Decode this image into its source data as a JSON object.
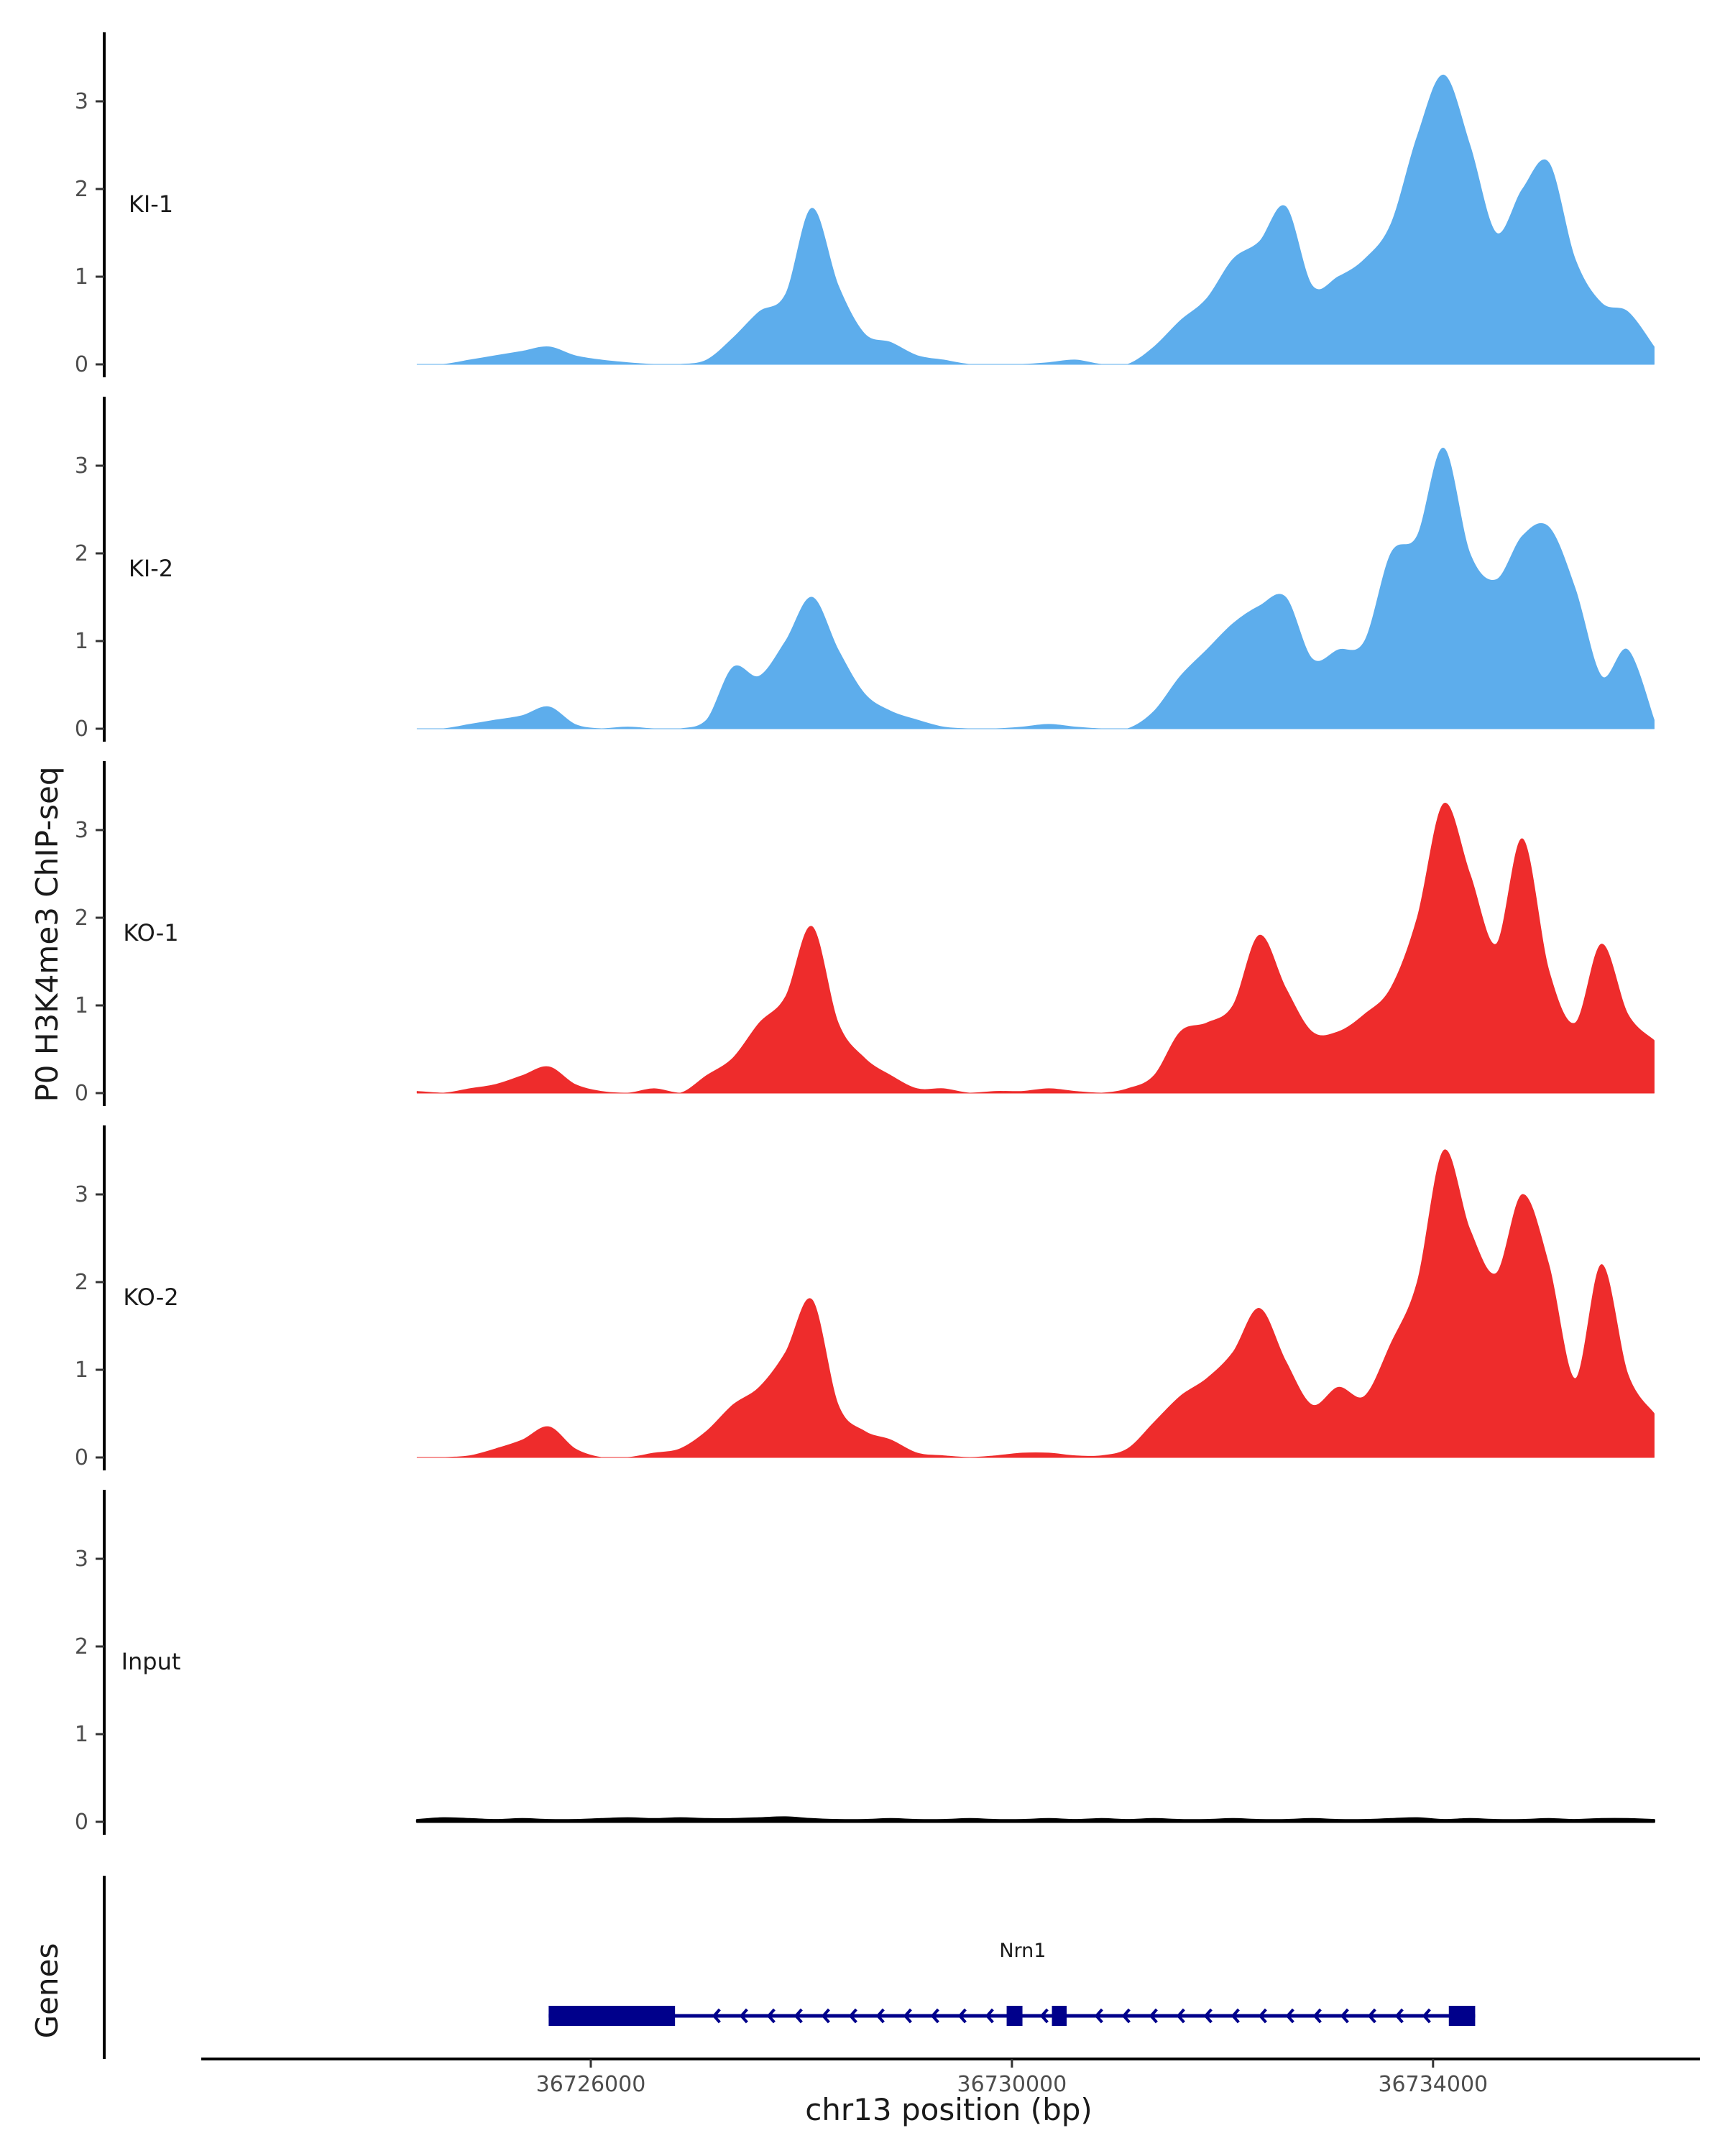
{
  "chart_data": {
    "type": "area",
    "title": "",
    "ylabel": "P0 H3K4me3 ChIP-seq",
    "xlabel": "chr13 position (bp)",
    "genes_label": "Genes",
    "xlim": [
      36722300,
      36736500
    ],
    "ylim": [
      0,
      3.75
    ],
    "y_ticks": [
      0,
      1,
      2,
      3
    ],
    "x_ticks": [
      36726000,
      36730000,
      36734000
    ],
    "x_tick_labels": [
      "36726000",
      "36730000",
      "36734000"
    ],
    "colors": {
      "KI": "#5DADEC",
      "KO": "#EE2C2C",
      "Input": "#000000",
      "gene": "#00008B"
    },
    "x": [
      36724350,
      36724600,
      36724850,
      36725100,
      36725350,
      36725600,
      36725850,
      36726100,
      36726350,
      36726600,
      36726850,
      36727100,
      36727350,
      36727600,
      36727850,
      36728100,
      36728350,
      36728600,
      36728850,
      36729100,
      36729350,
      36729600,
      36729850,
      36730100,
      36730350,
      36730600,
      36730850,
      36731100,
      36731350,
      36731600,
      36731850,
      36732100,
      36732350,
      36732600,
      36732850,
      36733100,
      36733350,
      36733600,
      36733850,
      36734100,
      36734350,
      36734600,
      36734850,
      36735100,
      36735350,
      36735600,
      36735850,
      36736100
    ],
    "series": [
      {
        "name": "KI-1",
        "color": "#5DADEC",
        "values": [
          0.0,
          0.0,
          0.05,
          0.1,
          0.15,
          0.2,
          0.1,
          0.05,
          0.02,
          0.0,
          0.0,
          0.05,
          0.3,
          0.6,
          0.8,
          1.78,
          0.9,
          0.35,
          0.25,
          0.1,
          0.05,
          0.0,
          0.0,
          0.0,
          0.02,
          0.05,
          0.0,
          0.0,
          0.2,
          0.5,
          0.75,
          1.2,
          1.4,
          1.8,
          0.9,
          1.0,
          1.2,
          1.6,
          2.6,
          3.3,
          2.5,
          1.5,
          2.0,
          2.3,
          1.2,
          0.7,
          0.6,
          0.2
        ]
      },
      {
        "name": "KI-2",
        "color": "#5DADEC",
        "values": [
          0.0,
          0.0,
          0.05,
          0.1,
          0.15,
          0.25,
          0.05,
          0.0,
          0.02,
          0.0,
          0.0,
          0.1,
          0.7,
          0.6,
          1.0,
          1.5,
          0.9,
          0.4,
          0.2,
          0.1,
          0.02,
          0.0,
          0.0,
          0.02,
          0.05,
          0.02,
          0.0,
          0.0,
          0.2,
          0.6,
          0.9,
          1.2,
          1.4,
          1.5,
          0.8,
          0.9,
          1.0,
          2.0,
          2.2,
          3.2,
          2.0,
          1.7,
          2.2,
          2.3,
          1.6,
          0.6,
          0.9,
          0.1
        ]
      },
      {
        "name": "KO-1",
        "color": "#EE2C2C",
        "values": [
          0.02,
          0.0,
          0.05,
          0.1,
          0.2,
          0.3,
          0.1,
          0.02,
          0.0,
          0.05,
          0.0,
          0.2,
          0.4,
          0.8,
          1.1,
          1.9,
          0.8,
          0.4,
          0.2,
          0.05,
          0.05,
          0.0,
          0.02,
          0.02,
          0.05,
          0.02,
          0.0,
          0.05,
          0.2,
          0.7,
          0.8,
          1.0,
          1.8,
          1.2,
          0.7,
          0.7,
          0.9,
          1.2,
          2.0,
          3.3,
          2.5,
          1.7,
          2.9,
          1.4,
          0.8,
          1.7,
          0.9,
          0.6
        ]
      },
      {
        "name": "KO-2",
        "color": "#EE2C2C",
        "values": [
          0.0,
          0.0,
          0.02,
          0.1,
          0.2,
          0.35,
          0.1,
          0.0,
          0.0,
          0.05,
          0.1,
          0.3,
          0.6,
          0.8,
          1.2,
          1.8,
          0.6,
          0.3,
          0.2,
          0.05,
          0.02,
          0.0,
          0.02,
          0.05,
          0.05,
          0.02,
          0.02,
          0.1,
          0.4,
          0.7,
          0.9,
          1.2,
          1.7,
          1.1,
          0.6,
          0.8,
          0.7,
          1.3,
          2.0,
          3.5,
          2.6,
          2.1,
          3.0,
          2.2,
          0.9,
          2.2,
          0.95,
          0.5
        ]
      },
      {
        "name": "Input",
        "color": "#000000",
        "values": [
          0.02,
          0.04,
          0.03,
          0.02,
          0.03,
          0.02,
          0.02,
          0.03,
          0.04,
          0.03,
          0.04,
          0.03,
          0.03,
          0.04,
          0.05,
          0.03,
          0.02,
          0.02,
          0.03,
          0.02,
          0.02,
          0.03,
          0.02,
          0.02,
          0.03,
          0.02,
          0.03,
          0.02,
          0.03,
          0.02,
          0.02,
          0.03,
          0.02,
          0.02,
          0.03,
          0.02,
          0.02,
          0.03,
          0.04,
          0.02,
          0.03,
          0.02,
          0.02,
          0.03,
          0.02,
          0.03,
          0.03,
          0.02
        ]
      }
    ],
    "gene": {
      "name": "Nrn1",
      "strand": "-",
      "start": 36725600,
      "end": 36734400,
      "exons": [
        {
          "start": 36725600,
          "end": 36726800,
          "type": "utr"
        },
        {
          "start": 36729950,
          "end": 36730100,
          "type": "cds"
        },
        {
          "start": 36730380,
          "end": 36730520,
          "type": "cds"
        },
        {
          "start": 36734150,
          "end": 36734400,
          "type": "cds"
        }
      ]
    }
  }
}
